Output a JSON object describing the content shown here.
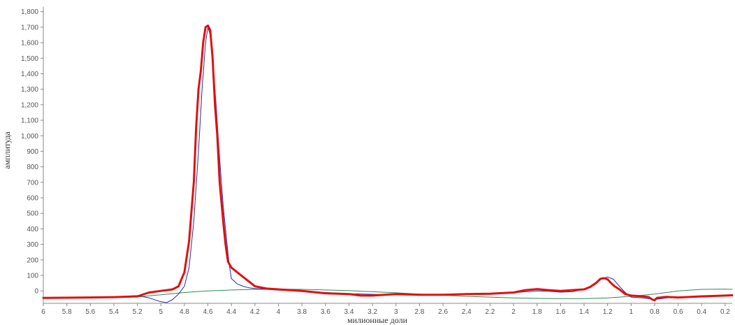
{
  "chart_data": {
    "type": "line",
    "title": "",
    "xlabel": "милионные доли",
    "ylabel": "амплитуда",
    "xlim": [
      6,
      0.14
    ],
    "ylim": [
      -80,
      1830
    ],
    "x_reversed": true,
    "grid": false,
    "legend": "none",
    "x_ticks": [
      6,
      5.8,
      5.6,
      5.4,
      5.2,
      5,
      4.8,
      4.6,
      4.4,
      4.2,
      4,
      3.8,
      3.6,
      3.4,
      3.2,
      3,
      2.8,
      2.6,
      2.4,
      2.2,
      2,
      1.8,
      1.6,
      1.4,
      1.2,
      1,
      0.8,
      0.6,
      0.4,
      0.2
    ],
    "x_tick_labels": [
      "6",
      "5.8",
      "5.6",
      "5.4",
      "5.2",
      "5",
      "4.8",
      "4.6",
      "4.4",
      "4.2",
      "4",
      "3.8",
      "3.6",
      "3.4",
      "3.2",
      "3",
      "2.8",
      "2.6",
      "2.4",
      "2.2",
      "2",
      "1.8",
      "1.6",
      "1.4",
      "1.2",
      "1",
      "0.8",
      "0.6",
      "0.4",
      "0.2"
    ],
    "y_ticks": [
      0,
      100,
      200,
      300,
      400,
      500,
      600,
      700,
      800,
      900,
      1000,
      1100,
      1200,
      1300,
      1400,
      1500,
      1600,
      1700,
      1800
    ],
    "y_tick_labels": [
      "0",
      "100",
      "200",
      "300",
      "400",
      "500",
      "600",
      "700",
      "800",
      "900",
      "1,000",
      "1,100",
      "1,200",
      "1,300",
      "1,400",
      "1,500",
      "1,600",
      "1,700",
      "1,800"
    ],
    "series": [
      {
        "color": "#2e8b57",
        "width": 1,
        "x": [
          6,
          5.6,
          5.2,
          5.0,
          4.8,
          4.6,
          4.4,
          4.2,
          4.0,
          3.8,
          3.6,
          3.4,
          3.2,
          3.0,
          2.8,
          2.6,
          2.4,
          2.2,
          2.0,
          1.8,
          1.6,
          1.4,
          1.2,
          1.0,
          0.8,
          0.6,
          0.4,
          0.2,
          0.14
        ],
        "y": [
          -45,
          -43,
          -38,
          -25,
          -10,
          0,
          6,
          10,
          12,
          10,
          6,
          2,
          -5,
          -12,
          -20,
          -28,
          -35,
          -40,
          -45,
          -48,
          -50,
          -50,
          -45,
          -35,
          -20,
          0,
          10,
          12,
          10
        ]
      },
      {
        "color": "#2b2b9e",
        "width": 1,
        "x": [
          6,
          5.6,
          5.4,
          5.2,
          5.1,
          5.0,
          4.95,
          4.9,
          4.85,
          4.8,
          4.76,
          4.72,
          4.68,
          4.65,
          4.62,
          4.6,
          4.58,
          4.56,
          4.53,
          4.5,
          4.47,
          4.44,
          4.42,
          4.4,
          4.35,
          4.3,
          4.25,
          4.2,
          4.1,
          4.0,
          3.8,
          3.6,
          3.4,
          3.2,
          3.0,
          2.8,
          2.6,
          2.4,
          2.2,
          2.0,
          1.9,
          1.8,
          1.7,
          1.6,
          1.5,
          1.4,
          1.35,
          1.3,
          1.25,
          1.2,
          1.15,
          1.1,
          1.05,
          1.0,
          0.9,
          0.8,
          0.7,
          0.6,
          0.4,
          0.2,
          0.14
        ],
        "y": [
          -45,
          -42,
          -38,
          -30,
          -45,
          -70,
          -75,
          -55,
          -20,
          30,
          150,
          450,
          900,
          1300,
          1600,
          1700,
          1650,
          1500,
          1200,
          850,
          550,
          320,
          180,
          80,
          45,
          30,
          20,
          15,
          10,
          5,
          0,
          -10,
          -18,
          -22,
          -25,
          -25,
          -25,
          -22,
          -18,
          -12,
          -5,
          0,
          -2,
          -8,
          -5,
          10,
          30,
          55,
          80,
          90,
          75,
          30,
          -10,
          -40,
          -45,
          -55,
          -45,
          -40,
          -35,
          -30,
          -28
        ]
      },
      {
        "color": "#e01010",
        "width": 3,
        "x": [
          6,
          5.6,
          5.4,
          5.2,
          5.1,
          5.0,
          4.9,
          4.85,
          4.8,
          4.76,
          4.72,
          4.7,
          4.68,
          4.66,
          4.64,
          4.62,
          4.6,
          4.58,
          4.56,
          4.54,
          4.52,
          4.5,
          4.47,
          4.45,
          4.43,
          4.4,
          4.35,
          4.3,
          4.25,
          4.2,
          4.1,
          4.0,
          3.9,
          3.8,
          3.6,
          3.4,
          3.3,
          3.2,
          3.0,
          2.8,
          2.6,
          2.4,
          2.2,
          2.0,
          1.9,
          1.8,
          1.7,
          1.6,
          1.5,
          1.4,
          1.35,
          1.3,
          1.26,
          1.23,
          1.2,
          1.17,
          1.14,
          1.1,
          1.05,
          1.0,
          0.9,
          0.85,
          0.82,
          0.8,
          0.78,
          0.7,
          0.6,
          0.4,
          0.2,
          0.14
        ],
        "y": [
          -45,
          -42,
          -40,
          -35,
          -10,
          0,
          10,
          30,
          120,
          320,
          700,
          1050,
          1300,
          1420,
          1600,
          1700,
          1710,
          1680,
          1500,
          1200,
          1000,
          700,
          450,
          300,
          190,
          150,
          120,
          90,
          60,
          30,
          15,
          10,
          5,
          0,
          -15,
          -20,
          -30,
          -30,
          -20,
          -25,
          -25,
          -20,
          -18,
          -10,
          5,
          12,
          5,
          0,
          5,
          10,
          25,
          50,
          78,
          82,
          75,
          50,
          30,
          10,
          -20,
          -30,
          -35,
          -40,
          -55,
          -60,
          -45,
          -38,
          -42,
          -35,
          -30,
          -28
        ]
      }
    ]
  }
}
